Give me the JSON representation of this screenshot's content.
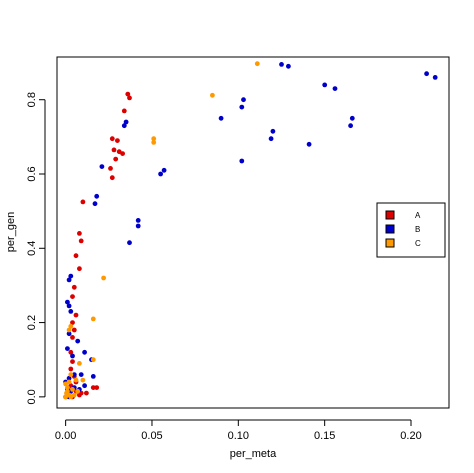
{
  "chart_data": {
    "type": "scatter",
    "title": "",
    "xlabel": "per_meta",
    "ylabel": "per_gen",
    "xlim": [
      -0.005,
      0.222
    ],
    "ylim": [
      -0.03,
      0.915
    ],
    "xticks": [
      0.0,
      0.05,
      0.1,
      0.15,
      0.2
    ],
    "xtick_labels": [
      "0.00",
      "0.05",
      "0.10",
      "0.15",
      "0.20"
    ],
    "yticks": [
      0.0,
      0.2,
      0.4,
      0.6,
      0.8
    ],
    "ytick_labels": [
      "0.0",
      "0.2",
      "0.4",
      "0.6",
      "0.8"
    ],
    "grid": false,
    "legend_position": "right",
    "series": [
      {
        "name": "A",
        "color": "#dd0000",
        "points": [
          [
            0.036,
            0.815
          ],
          [
            0.037,
            0.805
          ],
          [
            0.034,
            0.77
          ],
          [
            0.027,
            0.695
          ],
          [
            0.03,
            0.69
          ],
          [
            0.028,
            0.665
          ],
          [
            0.031,
            0.66
          ],
          [
            0.033,
            0.655
          ],
          [
            0.029,
            0.64
          ],
          [
            0.026,
            0.615
          ],
          [
            0.027,
            0.59
          ],
          [
            0.01,
            0.525
          ],
          [
            0.008,
            0.44
          ],
          [
            0.009,
            0.42
          ],
          [
            0.006,
            0.38
          ],
          [
            0.008,
            0.345
          ],
          [
            0.005,
            0.295
          ],
          [
            0.004,
            0.27
          ],
          [
            0.006,
            0.22
          ],
          [
            0.004,
            0.2
          ],
          [
            0.005,
            0.18
          ],
          [
            0.004,
            0.16
          ],
          [
            0.003,
            0.12
          ],
          [
            0.004,
            0.095
          ],
          [
            0.003,
            0.075
          ],
          [
            0.005,
            0.055
          ],
          [
            0.006,
            0.04
          ],
          [
            0.018,
            0.025
          ],
          [
            0.016,
            0.025
          ],
          [
            0.009,
            0.01
          ],
          [
            0.006,
            0.015
          ],
          [
            0.003,
            0.03
          ],
          [
            0.002,
            0.01
          ],
          [
            0.004,
            0.0
          ],
          [
            0.001,
            0.005
          ],
          [
            0.0015,
            0.02
          ],
          [
            0.012,
            0.01
          ],
          [
            0.008,
            0.005
          ]
        ]
      },
      {
        "name": "B",
        "color": "#0000cc",
        "points": [
          [
            0.209,
            0.87
          ],
          [
            0.214,
            0.86
          ],
          [
            0.125,
            0.895
          ],
          [
            0.129,
            0.89
          ],
          [
            0.15,
            0.84
          ],
          [
            0.156,
            0.83
          ],
          [
            0.103,
            0.8
          ],
          [
            0.102,
            0.78
          ],
          [
            0.09,
            0.75
          ],
          [
            0.166,
            0.75
          ],
          [
            0.165,
            0.73
          ],
          [
            0.12,
            0.715
          ],
          [
            0.119,
            0.695
          ],
          [
            0.141,
            0.68
          ],
          [
            0.102,
            0.635
          ],
          [
            0.057,
            0.61
          ],
          [
            0.055,
            0.6
          ],
          [
            0.034,
            0.73
          ],
          [
            0.035,
            0.74
          ],
          [
            0.021,
            0.62
          ],
          [
            0.018,
            0.54
          ],
          [
            0.017,
            0.52
          ],
          [
            0.042,
            0.475
          ],
          [
            0.042,
            0.46
          ],
          [
            0.037,
            0.415
          ],
          [
            0.003,
            0.325
          ],
          [
            0.002,
            0.315
          ],
          [
            0.001,
            0.255
          ],
          [
            0.002,
            0.245
          ],
          [
            0.003,
            0.23
          ],
          [
            0.002,
            0.17
          ],
          [
            0.001,
            0.13
          ],
          [
            0.007,
            0.15
          ],
          [
            0.011,
            0.12
          ],
          [
            0.004,
            0.11
          ],
          [
            0.015,
            0.1
          ],
          [
            0.005,
            0.06
          ],
          [
            0.009,
            0.06
          ],
          [
            0.002,
            0.05
          ],
          [
            0.016,
            0.055
          ],
          [
            0.011,
            0.03
          ],
          [
            0.0,
            0.04
          ],
          [
            0.001,
            0.02
          ],
          [
            0.003,
            0.015
          ],
          [
            0.005,
            0.025
          ],
          [
            0.008,
            0.02
          ],
          [
            0.0,
            0.0
          ],
          [
            0.002,
            0.0
          ]
        ]
      },
      {
        "name": "C",
        "color": "#ff9900",
        "points": [
          [
            0.111,
            0.897
          ],
          [
            0.085,
            0.812
          ],
          [
            0.051,
            0.695
          ],
          [
            0.051,
            0.685
          ],
          [
            0.022,
            0.32
          ],
          [
            0.016,
            0.21
          ],
          [
            0.002,
            0.18
          ],
          [
            0.003,
            0.19
          ],
          [
            0.016,
            0.1
          ],
          [
            0.008,
            0.09
          ],
          [
            0.003,
            0.06
          ],
          [
            0.002,
            0.04
          ],
          [
            0.006,
            0.045
          ],
          [
            0.01,
            0.045
          ],
          [
            0.0,
            0.035
          ],
          [
            0.001,
            0.025
          ],
          [
            0.004,
            0.02
          ],
          [
            0.007,
            0.015
          ],
          [
            0.0005,
            0.01
          ],
          [
            0.002,
            0.005
          ],
          [
            0.003,
            0.0
          ],
          [
            0.0,
            0.0
          ],
          [
            0.001,
            0.015
          ],
          [
            0.005,
            0.005
          ]
        ]
      }
    ]
  }
}
